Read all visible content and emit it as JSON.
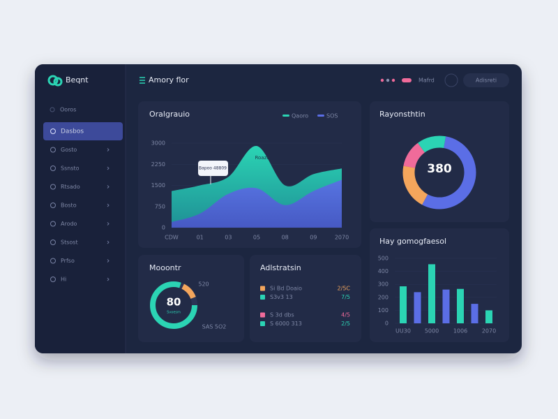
{
  "brand": "Beqnt",
  "header": {
    "title": "Amory flor",
    "status": "Mafrd",
    "account": "Adisreti"
  },
  "sidebar": {
    "section": "Ooros",
    "items": [
      "Dasbos",
      "Gosto",
      "Ssnsto",
      "Rtsado",
      "Bosto",
      "Arodo",
      "Stsost",
      "Prfso",
      "Hi"
    ]
  },
  "chart_data": [
    {
      "type": "area",
      "title": "Oralgrauio",
      "categories": [
        "CDW",
        "01",
        "03",
        "05",
        "08",
        "09",
        "2070"
      ],
      "series": [
        {
          "name": "Qaoro",
          "color": "#2bd4b4",
          "values": [
            1300,
            1500,
            1800,
            2900,
            1500,
            1900,
            2100
          ]
        },
        {
          "name": "SOS",
          "color": "#5b6ee6",
          "values": [
            200,
            500,
            1200,
            1400,
            800,
            1300,
            1700
          ]
        }
      ],
      "ylim": [
        0,
        3000
      ],
      "yticks": [
        0,
        750,
        1500,
        2250,
        3000
      ],
      "annotations": [
        "Bapoo 48809",
        "Roazo"
      ]
    },
    {
      "type": "donut",
      "title": "Rayonsthtin",
      "center_label": "380",
      "values": [
        55,
        20,
        12,
        13
      ],
      "colors": [
        "#5b6ee6",
        "#f4a65c",
        "#f06b9a",
        "#2bd4b4"
      ]
    },
    {
      "type": "gauge",
      "title": "Mooontr",
      "subtitle": "Svoesm",
      "values": [
        80,
        12
      ],
      "colors": [
        "#2bd4b4",
        "#f4a65c"
      ],
      "annotations": [
        "520",
        "SAS 5O2"
      ]
    },
    {
      "type": "bar",
      "title": "Hay gomogfaesol",
      "categories": [
        "UU30",
        null,
        "5000",
        null,
        "1006",
        null,
        "2070"
      ],
      "values": [
        285,
        240,
        455,
        260,
        265,
        150,
        100
      ],
      "colors": [
        "#2bd4b4",
        "#5b6ee6",
        "#2bd4b4",
        "#5b6ee6",
        "#2bd4b4",
        "#5b6ee6",
        "#2bd4b4"
      ],
      "ylim": [
        0,
        500
      ],
      "yticks": [
        0,
        100,
        200,
        300,
        400,
        500
      ]
    }
  ],
  "list": {
    "title": "Adlstratsin",
    "rows": [
      {
        "label": "Si Bd Doaio",
        "value": "2/5C",
        "color": "#f4a65c"
      },
      {
        "label": "S3v3 13",
        "value": "7/5",
        "color": "#2bd4b4"
      },
      {
        "label": "S 3d dbs",
        "value": "4/5",
        "color": "#f06b9a"
      },
      {
        "label": "S 6000 313",
        "value": "2/5",
        "color": "#2bd4b4"
      }
    ]
  }
}
